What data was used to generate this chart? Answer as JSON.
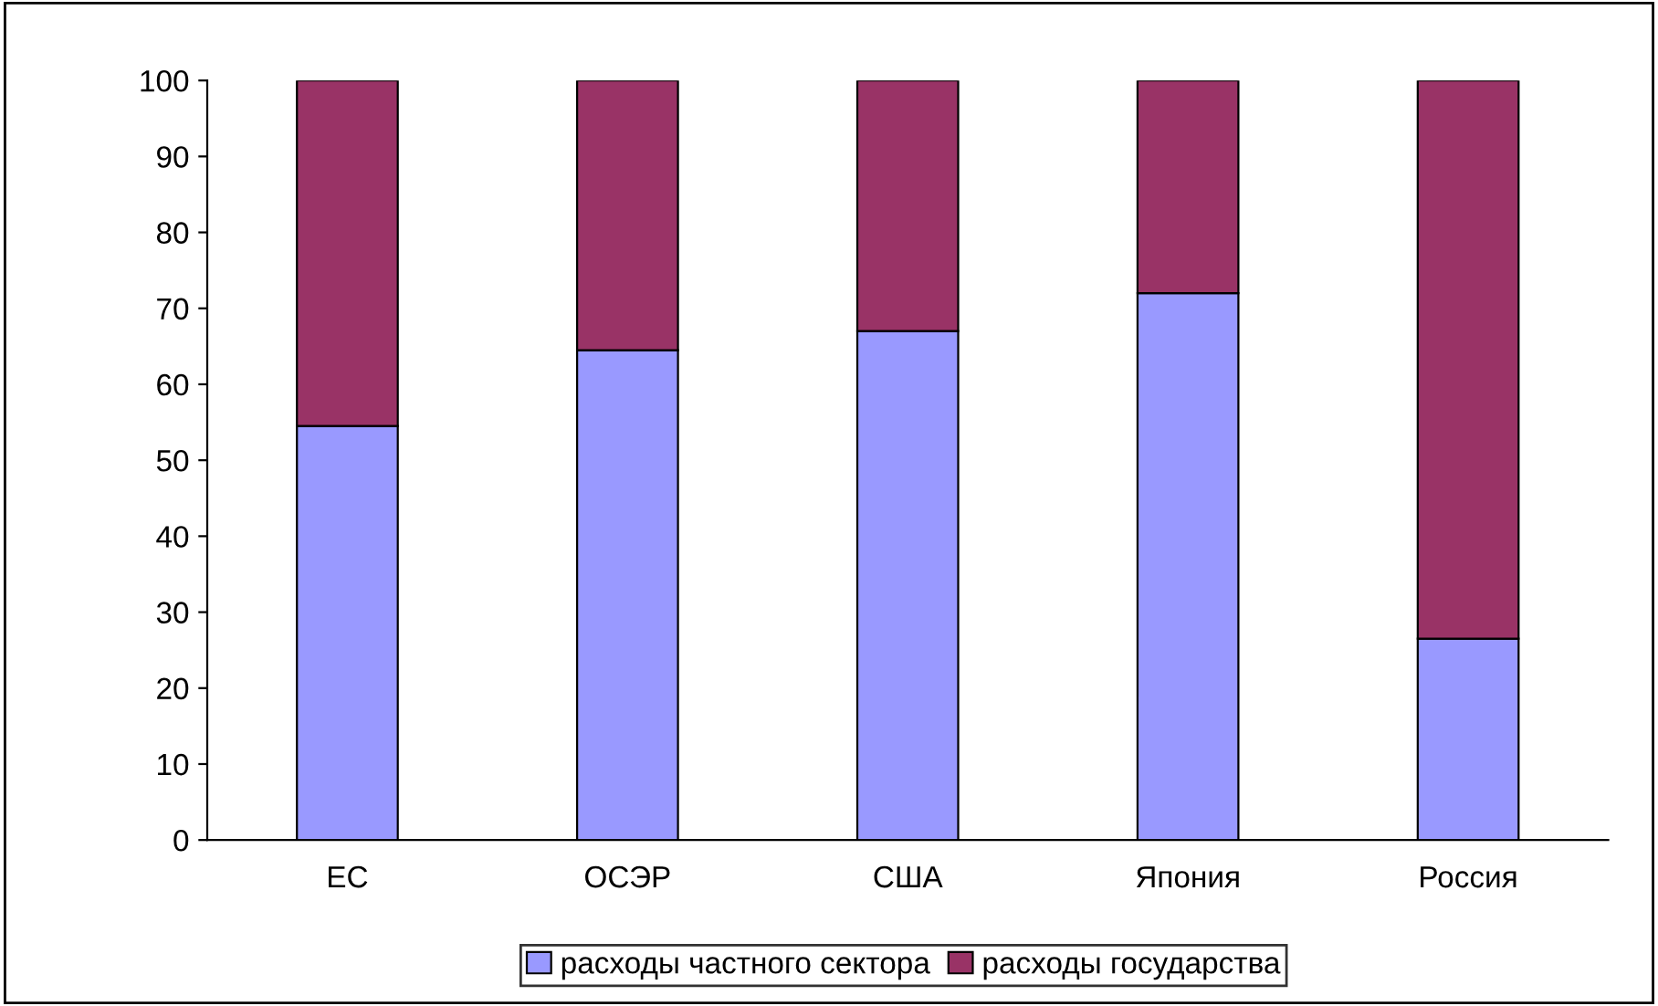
{
  "chart_data": {
    "type": "bar",
    "stacked": true,
    "categories": [
      "ЕС",
      "ОСЭР",
      "США",
      "Япония",
      "Россия"
    ],
    "series": [
      {
        "name": "расходы частного сектора",
        "color": "#9999ff",
        "values": [
          54.5,
          64.5,
          67,
          72,
          26.5
        ]
      },
      {
        "name": "расходы государства",
        "color": "#993366",
        "values": [
          45.5,
          35.5,
          33,
          28,
          73.5
        ]
      }
    ],
    "ylim": [
      0,
      100
    ],
    "yticks": [
      0,
      10,
      20,
      30,
      40,
      50,
      60,
      70,
      80,
      90,
      100
    ],
    "grid": false,
    "legend": "bottom"
  }
}
